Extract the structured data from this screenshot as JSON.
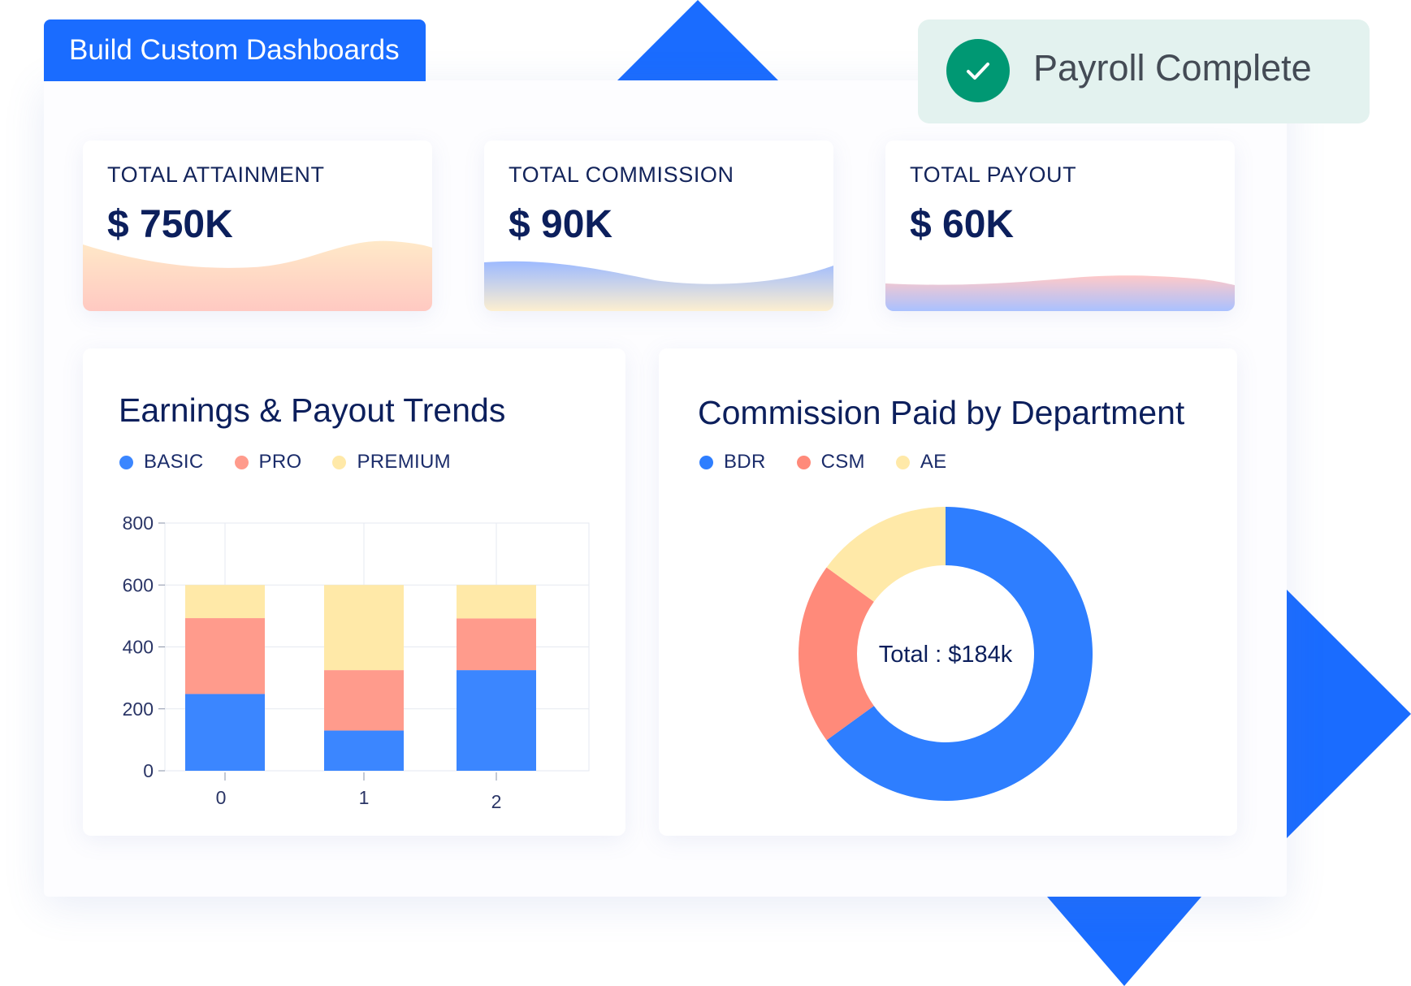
{
  "header": {
    "tab_label": "Build Custom Dashboards"
  },
  "toast": {
    "label": "Payroll Complete",
    "icon": "check-icon",
    "color": "#009873"
  },
  "kpis": [
    {
      "label": "TOTAL ATTAINMENT",
      "value": "$ 750K"
    },
    {
      "label": "TOTAL COMMISSION",
      "value": "$ 90K"
    },
    {
      "label": "TOTAL PAYOUT",
      "value": "$ 60K"
    }
  ],
  "colors": {
    "accent": "#1a6cff",
    "basic": "#3b86ff",
    "pro": "#ff9b8c",
    "premium": "#ffe9a8",
    "bdr": "#2e7eff",
    "csm": "#ff8a7a",
    "ae": "#ffe9a8"
  },
  "chart_data": [
    {
      "type": "bar",
      "stacked": true,
      "title": "Earnings & Payout Trends",
      "categories": [
        "0",
        "1",
        "2"
      ],
      "series": [
        {
          "name": "BASIC",
          "values": [
            248,
            130,
            325
          ]
        },
        {
          "name": "PRO",
          "values": [
            245,
            195,
            167
          ]
        },
        {
          "name": "PREMIUM",
          "values": [
            107,
            275,
            108
          ]
        }
      ],
      "yticks": [
        "0",
        "200",
        "400",
        "600",
        "800"
      ],
      "ylim": [
        0,
        800
      ],
      "grid": true,
      "legend": "top-left"
    },
    {
      "type": "pie",
      "donut": true,
      "title": "Commission Paid by Department",
      "center_label": "Total : $184k",
      "slices": [
        {
          "name": "BDR",
          "value": 65
        },
        {
          "name": "CSM",
          "value": 20
        },
        {
          "name": "AE",
          "value": 15
        }
      ],
      "legend": "top-left"
    }
  ]
}
